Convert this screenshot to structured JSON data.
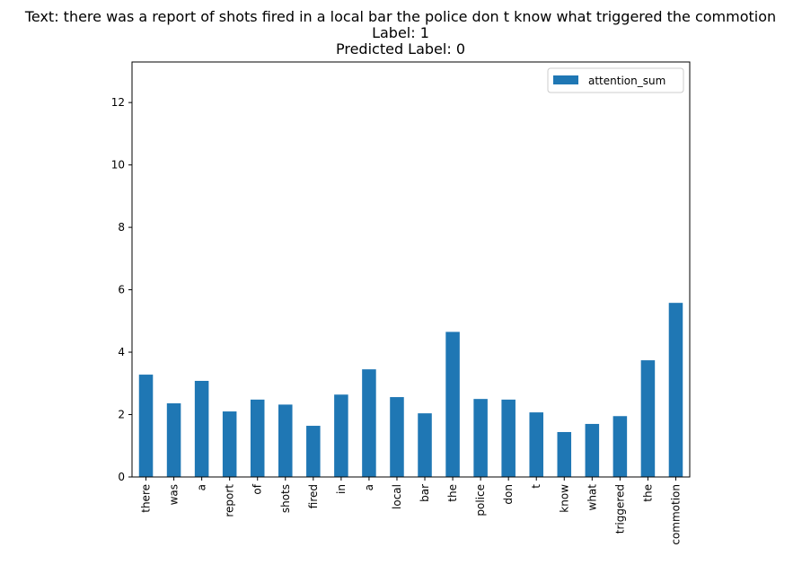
{
  "chart_data": {
    "type": "bar",
    "title_lines": [
      "Text: there was a report of shots fired in a local bar the police don t know what triggered the commotion",
      "Label: 1",
      "Predicted Label: 0"
    ],
    "categories": [
      "there",
      "was",
      "a",
      "report",
      "of",
      "shots",
      "fired",
      "in",
      "a",
      "local",
      "bar",
      "the",
      "police",
      "don",
      "t",
      "know",
      "what",
      "triggered",
      "the",
      "commotion"
    ],
    "series": [
      {
        "name": "attention_sum",
        "color": "#1f77b4",
        "values": [
          3.28,
          2.36,
          3.08,
          2.1,
          2.48,
          2.32,
          1.64,
          2.64,
          3.45,
          2.56,
          2.04,
          4.65,
          2.5,
          2.48,
          2.07,
          1.44,
          1.7,
          1.95,
          3.74,
          5.58
        ]
      }
    ],
    "xlabel": "",
    "ylabel": "",
    "ylim": [
      0,
      13.3
    ],
    "yticks": [
      0,
      2,
      4,
      6,
      8,
      10,
      12
    ],
    "grid": false,
    "legend": "top-right"
  }
}
